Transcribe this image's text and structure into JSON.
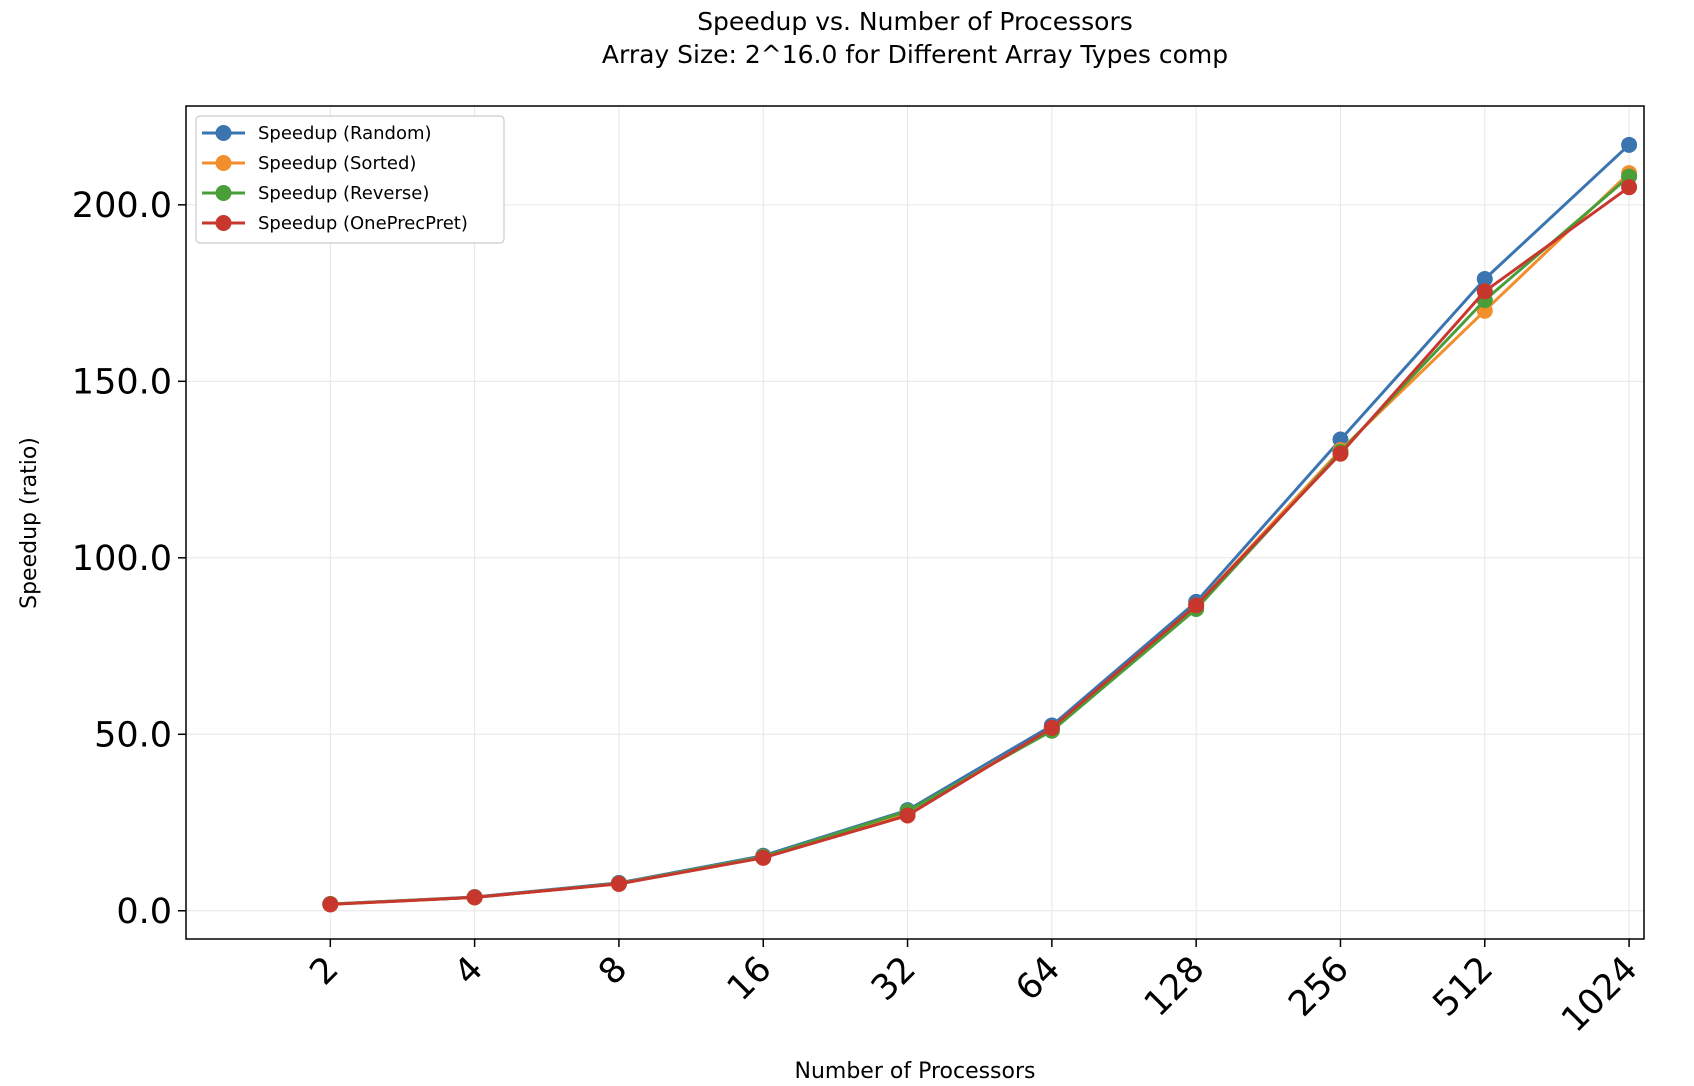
{
  "chart_data": {
    "type": "line",
    "title": "Speedup vs. Number of Processors",
    "subtitle": "Array Size: 2^16.0 for Different Array Types comp",
    "xlabel": "Number of Processors",
    "ylabel": "Speedup (ratio)",
    "x": [
      2,
      4,
      8,
      16,
      32,
      64,
      128,
      256,
      512,
      1024
    ],
    "x_tick_labels": [
      "2",
      "4",
      "8",
      "16",
      "32",
      "64",
      "128",
      "256",
      "512",
      "1024"
    ],
    "x_scale": "log2",
    "xlim": [
      1,
      1100
    ],
    "ylim": [
      -8,
      228
    ],
    "y_ticks": [
      0,
      50,
      100,
      150,
      200
    ],
    "y_tick_labels": [
      "0.0",
      "50.0",
      "100.0",
      "150.0",
      "200.0"
    ],
    "grid": true,
    "legend_position": "top-left",
    "series": [
      {
        "name": "Speedup (Random)",
        "color": "#3a75b0",
        "values": [
          1.9,
          3.9,
          7.9,
          15.6,
          28.5,
          52.5,
          87.5,
          133.5,
          179.0,
          217.0
        ]
      },
      {
        "name": "Speedup (Sorted)",
        "color": "#f28e2b",
        "values": [
          1.9,
          3.8,
          7.7,
          15.3,
          27.8,
          51.5,
          86.5,
          130.5,
          170.0,
          209.0
        ]
      },
      {
        "name": "Speedup (Reverse)",
        "color": "#4a9e3a",
        "values": [
          1.9,
          3.8,
          7.7,
          15.3,
          28.2,
          51.0,
          85.5,
          130.0,
          173.0,
          208.0
        ]
      },
      {
        "name": "Speedup (OnePrecPret)",
        "color": "#c8372d",
        "values": [
          1.8,
          3.8,
          7.6,
          15.0,
          27.0,
          51.8,
          86.5,
          129.5,
          175.5,
          205.0
        ]
      }
    ]
  }
}
